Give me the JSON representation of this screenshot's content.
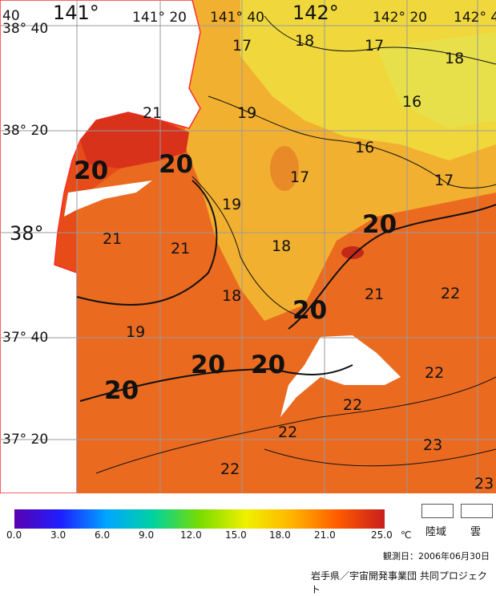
{
  "map": {
    "lon_labels": [
      "141°",
      "141° 20",
      "141° 40",
      "142°",
      "142° 20",
      "142° 4"
    ],
    "lat_labels": [
      "38° 40",
      "38° 20",
      "38°",
      "37° 40",
      "37° 20"
    ],
    "corner_label": "40",
    "isotherm_labels": [
      "17",
      "18",
      "17",
      "18",
      "16",
      "19",
      "21",
      "16",
      "20",
      "20",
      "17",
      "17",
      "19",
      "20",
      "21",
      "21",
      "18",
      "21",
      "22",
      "18",
      "20",
      "19",
      "22",
      "20",
      "20",
      "22",
      "20",
      "22",
      "23",
      "22",
      "23"
    ]
  },
  "legend": {
    "ticks": [
      "0.0",
      "3.0",
      "6.0",
      "9.0",
      "12.0",
      "15.0",
      "18.0",
      "21.0",
      "25.0"
    ],
    "unit": "℃",
    "land_label": "陸域",
    "cloud_label": "雲",
    "colors": [
      "#5a00b0",
      "#1e1eff",
      "#00a6ff",
      "#00d2a0",
      "#78dc00",
      "#f0f000",
      "#ffb400",
      "#ff5a00",
      "#c81e1e"
    ]
  },
  "observation_date": "観測日：2006年06月30日",
  "credit": "岩手県／宇宙開発事業団 共同プロジェクト"
}
